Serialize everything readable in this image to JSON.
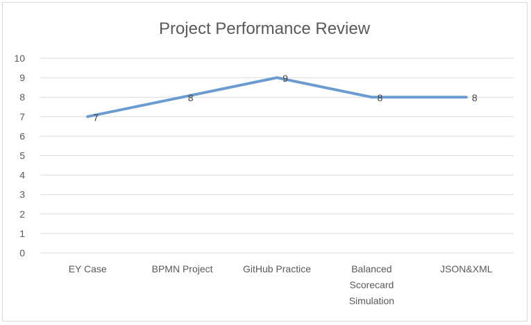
{
  "chart_data": {
    "type": "line",
    "title": "Project Performance Review",
    "categories": [
      "EY Case",
      "BPMN Project",
      "GitHub Practice",
      "Balanced Scorecard Simulation",
      "JSON&XML"
    ],
    "category_lines": [
      [
        "EY Case"
      ],
      [
        "BPMN Project"
      ],
      [
        "GitHub Practice"
      ],
      [
        "Balanced",
        "Scorecard",
        "Simulation"
      ],
      [
        "JSON&XML"
      ]
    ],
    "series": [
      {
        "values": [
          7,
          8,
          9,
          8,
          8
        ],
        "color": "#6a9bd1"
      }
    ],
    "data_labels": [
      "7",
      "8",
      "9",
      "8",
      "8"
    ],
    "ylim": [
      0,
      10
    ],
    "yticks": [
      "0",
      "1",
      "2",
      "3",
      "4",
      "5",
      "6",
      "7",
      "8",
      "9",
      "10"
    ],
    "grid": true,
    "legend": "none"
  }
}
